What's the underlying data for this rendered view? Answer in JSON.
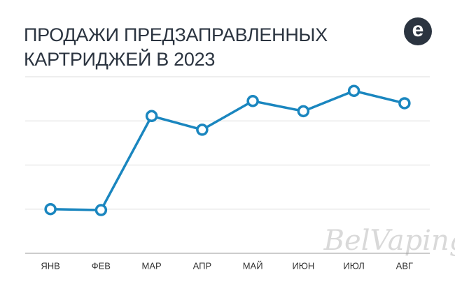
{
  "logo": "e",
  "watermark": "BelVaping",
  "chart_data": {
    "type": "line",
    "title": "ПРОДАЖИ ПРЕДЗАПРАВЛЕННЫХ КАРТРИДЖЕЙ В 2023",
    "categories": [
      "ЯНВ",
      "ФЕВ",
      "МАР",
      "АПР",
      "МАЙ",
      "ИЮН",
      "ИЮЛ",
      "АВГ"
    ],
    "values": [
      1.0,
      0.98,
      3.11,
      2.8,
      3.45,
      3.22,
      3.68,
      3.4
    ],
    "color": "#1a86bf",
    "ylim": [
      0,
      4
    ],
    "yticks": [
      0,
      1,
      2,
      3,
      4
    ],
    "grid": true
  }
}
